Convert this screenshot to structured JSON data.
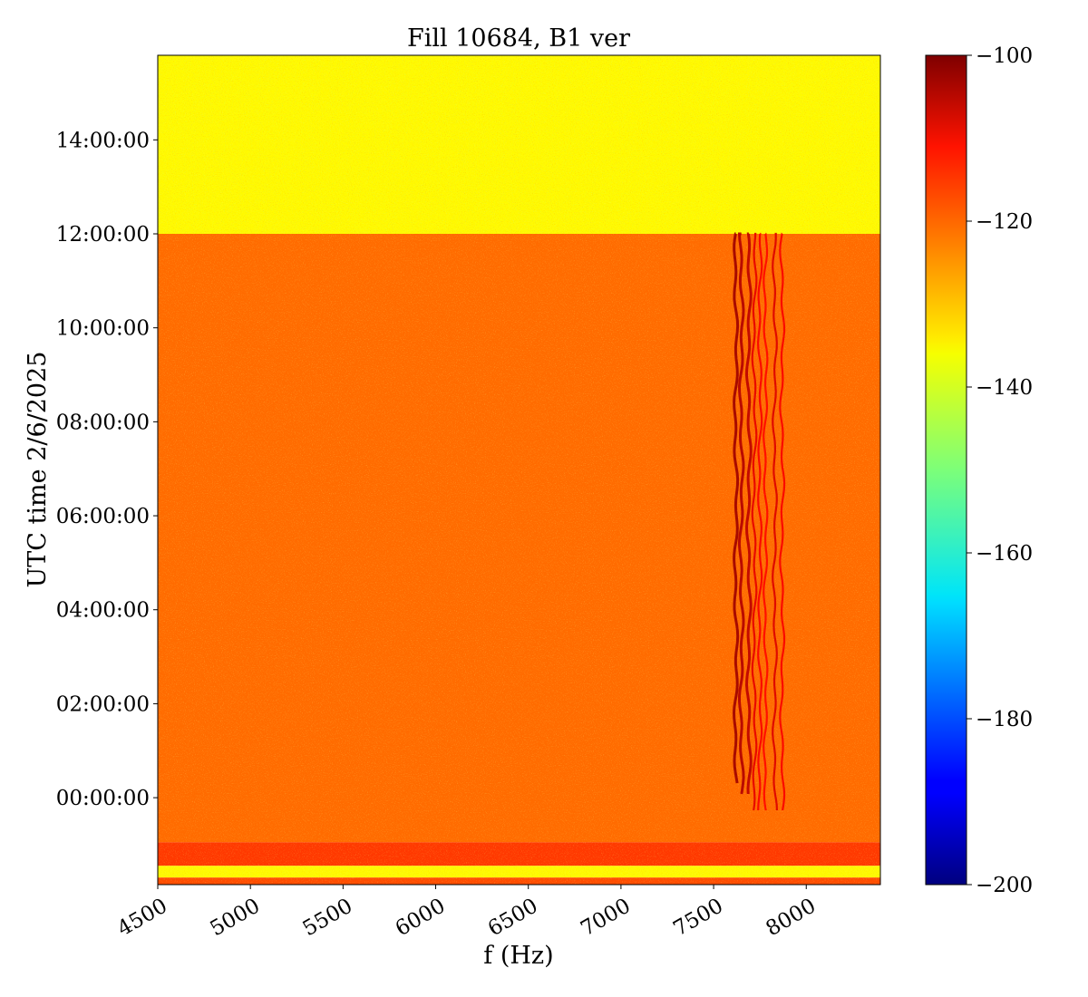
{
  "chart_data": {
    "type": "heatmap",
    "title": "Fill 10684, B1 ver",
    "xlabel": "f (Hz)",
    "ylabel": "UTC time 2/6/2025",
    "xlim": [
      4500,
      8400
    ],
    "ylim_hours": [
      -1.85,
      15.8
    ],
    "x_ticks": [
      4500,
      5000,
      5500,
      6000,
      6500,
      7000,
      7500,
      8000
    ],
    "y_ticks": [
      {
        "hours": 0,
        "label": "00:00:00"
      },
      {
        "hours": 2,
        "label": "02:00:00"
      },
      {
        "hours": 4,
        "label": "04:00:00"
      },
      {
        "hours": 6,
        "label": "06:00:00"
      },
      {
        "hours": 8,
        "label": "08:00:00"
      },
      {
        "hours": 10,
        "label": "10:00:00"
      },
      {
        "hours": 12,
        "label": "12:00:00"
      },
      {
        "hours": 14,
        "label": "14:00:00"
      }
    ],
    "colormap": "jet",
    "colorbar": {
      "min": -200,
      "max": -100,
      "ticks": [
        -100,
        -120,
        -140,
        -160,
        -180,
        -200
      ],
      "tick_labels": [
        "−100",
        "−120",
        "−140",
        "−160",
        "−180",
        "−200"
      ]
    },
    "bands": [
      {
        "t_from": 12.0,
        "t_to": 15.8,
        "level": -137
      },
      {
        "t_from": -0.95,
        "t_to": 12.0,
        "level": -123
      },
      {
        "t_from": -1.45,
        "t_to": -0.95,
        "level": -118
      },
      {
        "t_from": -1.7,
        "t_to": -1.45,
        "level": -137
      },
      {
        "t_from": -1.85,
        "t_to": -1.7,
        "level": -120
      }
    ],
    "lines": [
      {
        "f": 7620,
        "t_from": 0.2,
        "t_to": 12.0,
        "level": -103
      },
      {
        "f": 7650,
        "t_from": 0.0,
        "t_to": 12.0,
        "level": -105
      },
      {
        "f": 7690,
        "t_from": 0.0,
        "t_to": 12.0,
        "level": -106
      },
      {
        "f": 7720,
        "t_from": -0.3,
        "t_to": 12.0,
        "level": -110
      },
      {
        "f": 7750,
        "t_from": -0.3,
        "t_to": 12.0,
        "level": -112
      },
      {
        "f": 7780,
        "t_from": -0.3,
        "t_to": 12.0,
        "level": -113
      },
      {
        "f": 7830,
        "t_from": -0.3,
        "t_to": 12.0,
        "level": -109
      },
      {
        "f": 7870,
        "t_from": -0.3,
        "t_to": 12.0,
        "level": -112
      }
    ]
  }
}
